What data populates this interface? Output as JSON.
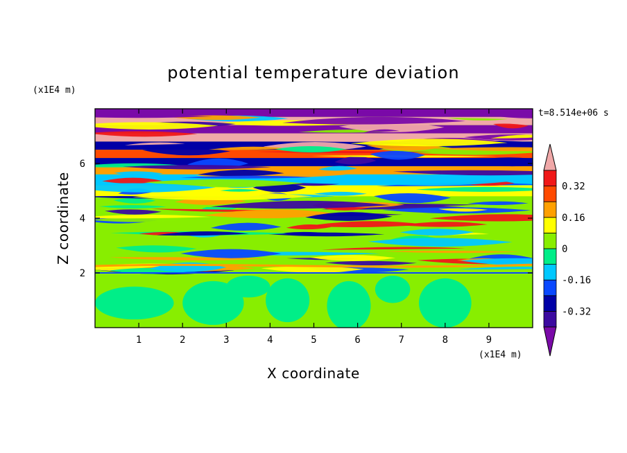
{
  "chart_data": {
    "type": "heatmap",
    "title": "potential temperature deviation",
    "xlabel": "X coordinate",
    "ylabel": "Z coordinate",
    "x_unit": "(x1E4 m)",
    "y_unit": "(x1E4 m)",
    "time_label": "t=8.514e+06 s",
    "xlim": [
      0,
      10
    ],
    "ylim": [
      0,
      8
    ],
    "x_ticks": [
      "1",
      "2",
      "3",
      "4",
      "5",
      "6",
      "7",
      "8",
      "9"
    ],
    "y_ticks": [
      "2",
      "4",
      "6"
    ],
    "contour_levels": [
      -0.4,
      -0.32,
      -0.24,
      -0.16,
      -0.08,
      0,
      0.08,
      0.16,
      0.24,
      0.32,
      0.4
    ],
    "colorbar_labels": [
      "0.32",
      "0.16",
      "0",
      "-0.16",
      "-0.32"
    ],
    "colorbar_extend": "both",
    "colors": {
      "below_min": "#7a0aa8",
      "levels": [
        "#3c0aa0",
        "#0000a6",
        "#0a48ff",
        "#00c8ff",
        "#00ee88",
        "#88ee00",
        "#ffff00",
        "#ffa000",
        "#ff4a00",
        "#f01818"
      ],
      "above_max": "#f0a8a8"
    },
    "layer_bands": [
      {
        "z0": 7.7,
        "z1": 8.0,
        "value": -0.45
      },
      {
        "z0": 7.4,
        "z1": 7.7,
        "value": 0.45
      },
      {
        "z0": 7.1,
        "z1": 7.4,
        "value": -0.45
      },
      {
        "z0": 6.8,
        "z1": 7.1,
        "value": 0.45
      },
      {
        "z0": 6.5,
        "z1": 6.8,
        "value": -0.3
      },
      {
        "z0": 6.2,
        "z1": 6.5,
        "value": 0.28
      },
      {
        "z0": 5.9,
        "z1": 6.2,
        "value": -0.3
      },
      {
        "z0": 5.6,
        "z1": 5.9,
        "value": 0.2
      },
      {
        "z0": 5.2,
        "z1": 5.6,
        "value": -0.1
      },
      {
        "z0": 4.8,
        "z1": 5.2,
        "value": 0.08
      },
      {
        "z0": 4.3,
        "z1": 4.8,
        "value": 0.02
      },
      {
        "z0": 3.6,
        "z1": 4.3,
        "value": 0.05
      },
      {
        "z0": 2.8,
        "z1": 3.6,
        "value": 0.03
      },
      {
        "z0": 2.0,
        "z1": 2.8,
        "value": 0.06
      },
      {
        "z0": 0.0,
        "z1": 2.0,
        "value": 0.04
      }
    ]
  }
}
